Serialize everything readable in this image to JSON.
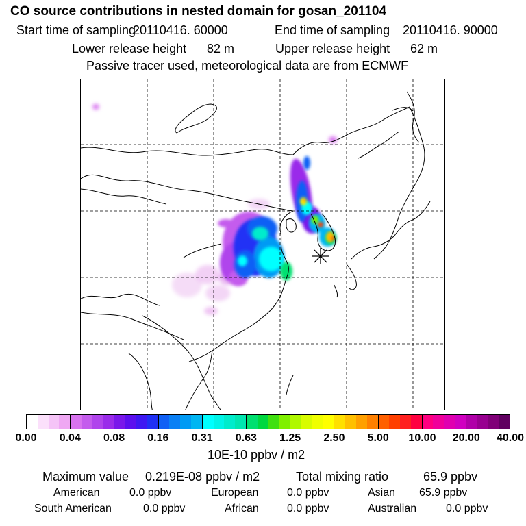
{
  "header": {
    "title": "CO  source contributions in nested domain for gosan_201104",
    "start_label": "Start time of sampling",
    "start_value": "20110416. 60000",
    "end_label": "End time of sampling",
    "end_value": "20110416. 90000",
    "lower_label": "Lower release height",
    "lower_value": "82 m",
    "upper_label": "Upper release height",
    "upper_value": "62 m",
    "tracer_note": "Passive tracer used, meteorological data are from ECMWF"
  },
  "colorbar": {
    "ticks": [
      "0.00",
      "0.04",
      "0.08",
      "0.16",
      "0.31",
      "0.63",
      "1.25",
      "2.50",
      "5.00",
      "10.00",
      "20.00",
      "40.00"
    ],
    "unit": "10E-10 ppbv / m2",
    "colors": [
      "#ffffff",
      "#fbe0fb",
      "#f5c4f7",
      "#efa8f3",
      "#d873ef",
      "#c45ced",
      "#b044ec",
      "#9a2cea",
      "#7a18ea",
      "#5c10ee",
      "#3e18f2",
      "#2030f5",
      "#1060f5",
      "#0a80f5",
      "#009af4",
      "#00b6f2",
      "#00ffff",
      "#00f4e8",
      "#00eccc",
      "#00e6b0",
      "#00e070",
      "#00d840",
      "#40e010",
      "#80f000",
      "#b0f800",
      "#d8fc00",
      "#f0ff00",
      "#ffff00",
      "#ffe000",
      "#ffc000",
      "#ffa000",
      "#ff8000",
      "#ff6000",
      "#ff4000",
      "#ff2020",
      "#ff0040",
      "#ff0080",
      "#f0009a",
      "#e000b0",
      "#d000c0",
      "#b000a8",
      "#980090",
      "#800078",
      "#600060"
    ]
  },
  "summary": {
    "max_label": "Maximum value",
    "max_value": "0.219E-08 ppbv / m2",
    "total_label": "Total mixing ratio",
    "total_value": "65.9 ppbv"
  },
  "regions": [
    {
      "name": "American",
      "value": "0.0 ppbv"
    },
    {
      "name": "European",
      "value": "0.0 ppbv"
    },
    {
      "name": "Asian",
      "value": "65.9 ppbv"
    },
    {
      "name": "South American",
      "value": "0.0 ppbv"
    },
    {
      "name": "African",
      "value": "0.0 ppbv"
    },
    {
      "name": "Australian",
      "value": "0.0 ppbv"
    }
  ]
}
